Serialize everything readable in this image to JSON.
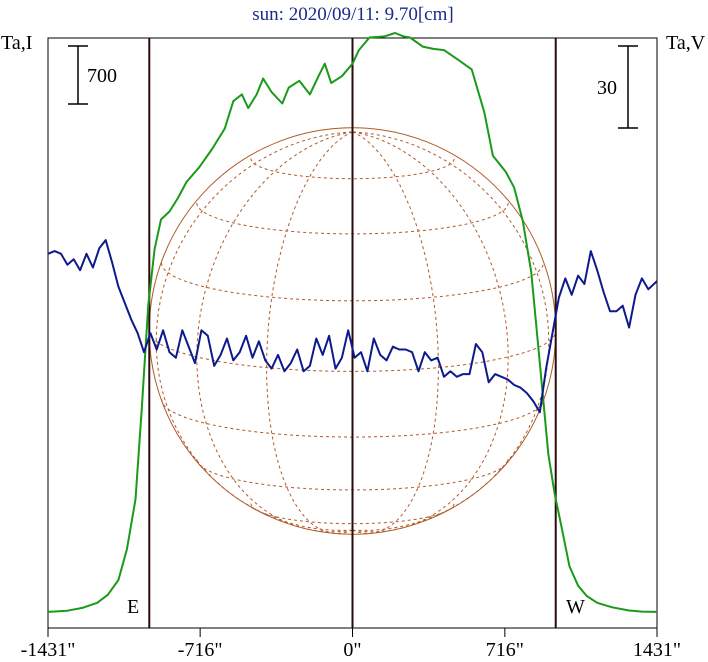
{
  "chart_data": {
    "type": "line",
    "title": "sun: 2020/09/11: 9.70[cm]",
    "left_axis_label": "Ta,I",
    "right_axis_label": "Ta,V",
    "left_scale_bar_label": "700",
    "right_scale_bar_label": "30",
    "x_ticks": [
      {
        "value": -1431,
        "label": "-1431\""
      },
      {
        "value": -716,
        "label": "-716\""
      },
      {
        "value": 0,
        "label": "0\""
      },
      {
        "value": 716,
        "label": "716\""
      },
      {
        "value": 1431,
        "label": "1431\""
      }
    ],
    "xlim": [
      -1431,
      1431
    ],
    "limb_markers": [
      {
        "x": -955,
        "label": "E"
      },
      {
        "x": 955,
        "label": "W"
      }
    ],
    "center_line_x": 0,
    "solar_disk": {
      "radius_arcsec": 955,
      "color": "#b05a28"
    },
    "series": [
      {
        "id": "stokes-i",
        "color": "#1a9a1a",
        "x": [
          -1431,
          -1340,
          -1270,
          -1200,
          -1150,
          -1100,
          -1060,
          -1020,
          -990,
          -960,
          -930,
          -900,
          -860,
          -820,
          -780,
          -720,
          -660,
          -600,
          -560,
          -520,
          -490,
          -450,
          -420,
          -380,
          -330,
          -300,
          -250,
          -200,
          -160,
          -130,
          -100,
          -50,
          0,
          30,
          80,
          150,
          200,
          240,
          270,
          330,
          380,
          430,
          500,
          560,
          620,
          660,
          720,
          760,
          800,
          840,
          880,
          920,
          950,
          980,
          1020,
          1060,
          1100,
          1150,
          1220,
          1300,
          1360,
          1431
        ],
        "y": [
          10,
          20,
          45,
          90,
          160,
          290,
          560,
          1000,
          1800,
          2700,
          3200,
          3460,
          3530,
          3650,
          3790,
          3920,
          4080,
          4260,
          4500,
          4560,
          4440,
          4560,
          4700,
          4580,
          4480,
          4620,
          4680,
          4560,
          4720,
          4830,
          4660,
          4720,
          4830,
          4950,
          5060,
          5070,
          5100,
          5070,
          5060,
          4980,
          4960,
          4950,
          4860,
          4780,
          4400,
          4020,
          3880,
          3740,
          3450,
          3000,
          2200,
          1400,
          1050,
          780,
          410,
          240,
          150,
          90,
          50,
          22,
          12,
          10
        ]
      },
      {
        "id": "stokes-v",
        "color": "#0d1a8c",
        "x": [
          -1431,
          -1400,
          -1370,
          -1340,
          -1310,
          -1280,
          -1250,
          -1220,
          -1190,
          -1160,
          -1130,
          -1100,
          -1070,
          -1040,
          -1010,
          -980,
          -950,
          -920,
          -890,
          -860,
          -830,
          -800,
          -770,
          -740,
          -710,
          -680,
          -650,
          -620,
          -590,
          -560,
          -530,
          -500,
          -470,
          -440,
          -410,
          -380,
          -350,
          -320,
          -290,
          -260,
          -230,
          -200,
          -170,
          -140,
          -110,
          -80,
          -50,
          -20,
          10,
          40,
          70,
          100,
          130,
          160,
          190,
          220,
          250,
          280,
          310,
          340,
          370,
          400,
          430,
          460,
          490,
          520,
          550,
          580,
          610,
          640,
          670,
          700,
          730,
          760,
          790,
          820,
          850,
          880,
          910,
          940,
          970,
          1000,
          1030,
          1060,
          1090,
          1120,
          1150,
          1180,
          1210,
          1240,
          1270,
          1300,
          1330,
          1360,
          1390,
          1431
        ],
        "y": [
          33,
          34,
          33,
          29,
          31,
          27,
          33,
          28,
          35,
          38,
          30,
          21,
          15,
          9,
          4,
          -3,
          4,
          -2,
          5,
          -3,
          -5,
          5,
          -1,
          -7,
          5,
          3,
          -8,
          -4,
          2,
          -6,
          -3,
          3,
          -5,
          1,
          -6,
          -9,
          -4,
          -10,
          -7,
          -2,
          -10,
          -8,
          2,
          -4,
          3,
          -9,
          -5,
          5,
          -5,
          -3,
          -10,
          2,
          -4,
          -6,
          -1,
          -2,
          -2,
          -3,
          -10,
          -3,
          -6,
          -5,
          -12,
          -10,
          -12,
          -11,
          -11,
          0,
          -3,
          -14,
          -11,
          -12,
          -13,
          -15,
          -16,
          -18,
          -21,
          -25,
          -9,
          4,
          17,
          24,
          18,
          25,
          22,
          34,
          27,
          19,
          12,
          12,
          14,
          6,
          18,
          24,
          20,
          23
        ]
      }
    ]
  }
}
